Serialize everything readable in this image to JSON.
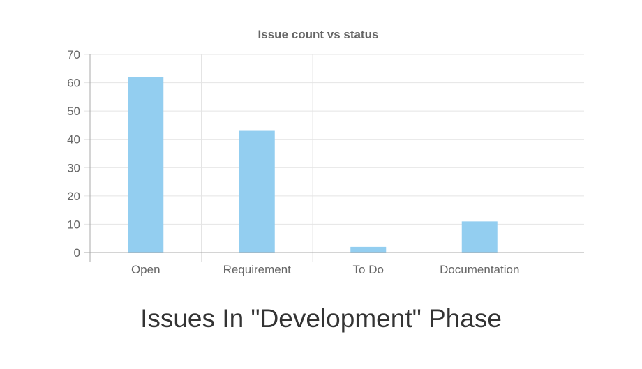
{
  "caption": "Issues In \"Development\" Phase",
  "colors": {
    "bar": "#93CEF0",
    "grid": "#e4e4e4",
    "axis": "#a8a8a8",
    "text": "#666666"
  },
  "chart_data": {
    "type": "bar",
    "title": "Issue count vs status",
    "xlabel": "",
    "ylabel": "",
    "categories": [
      "Open",
      "Requirement",
      "To Do",
      "Documentation"
    ],
    "values": [
      62,
      43,
      2,
      11
    ],
    "ylim": [
      0,
      70
    ],
    "yticks": [
      "0",
      "10",
      "20",
      "30",
      "40",
      "50",
      "60",
      "70"
    ],
    "grid": true,
    "legend": "none"
  }
}
